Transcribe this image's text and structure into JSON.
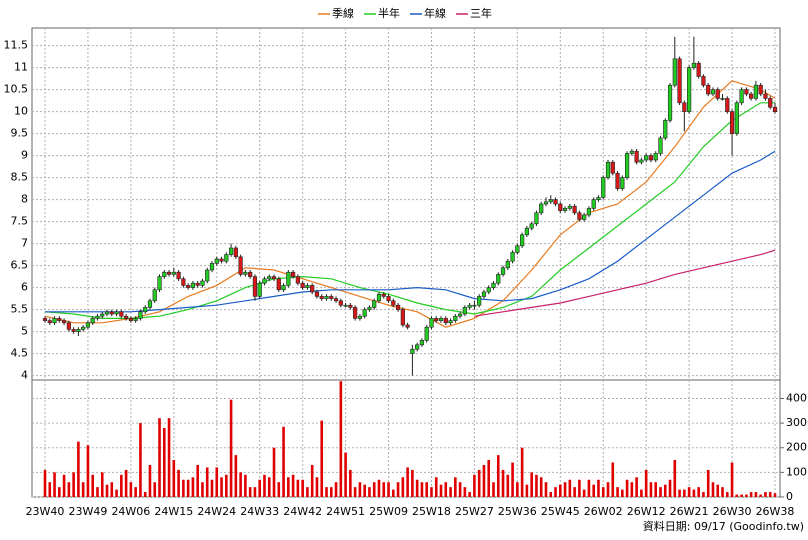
{
  "chart_data": {
    "type": "candlestick",
    "legend": "top",
    "categories": [
      "23W40",
      null,
      null,
      null,
      null,
      null,
      null,
      null,
      null,
      "23W49",
      null,
      null,
      null,
      null,
      null,
      null,
      null,
      null,
      "24W06",
      null,
      null,
      null,
      null,
      null,
      null,
      null,
      null,
      "24W15",
      null,
      null,
      null,
      null,
      null,
      null,
      null,
      null,
      "24W24",
      null,
      null,
      null,
      null,
      null,
      null,
      null,
      null,
      "24W33",
      null,
      null,
      null,
      null,
      null,
      null,
      null,
      null,
      "24W42",
      null,
      null,
      null,
      null,
      null,
      null,
      null,
      null,
      "24W51",
      null,
      null,
      null,
      null,
      null,
      null,
      null,
      null,
      "25W09",
      null,
      null,
      null,
      null,
      null,
      null,
      null,
      null,
      "25W18",
      null,
      null,
      null,
      null,
      null,
      null,
      null,
      null,
      "25W27",
      null,
      null,
      null,
      null,
      null,
      null,
      null,
      null,
      "25W36",
      null,
      null,
      null,
      null,
      null,
      null,
      null,
      null,
      "25W45",
      null,
      null,
      null,
      null,
      null,
      null,
      null,
      null,
      "26W02",
      null,
      null,
      null,
      null,
      null,
      null,
      null,
      null,
      "26W12",
      null,
      null,
      null,
      null,
      null,
      null,
      null,
      null,
      "26W21",
      null,
      null,
      null,
      null,
      null,
      null,
      null,
      null,
      "26W30",
      null,
      null,
      null,
      null,
      null,
      null,
      null,
      null,
      "26W38"
    ],
    "ohlc": [
      [
        5.3,
        5.35,
        5.2,
        5.25
      ],
      [
        5.25,
        5.3,
        5.15,
        5.2
      ],
      [
        5.2,
        5.35,
        5.15,
        5.3
      ],
      [
        5.3,
        5.35,
        5.2,
        5.25
      ],
      [
        5.25,
        5.3,
        5.15,
        5.2
      ],
      [
        5.2,
        5.25,
        5.0,
        5.05
      ],
      [
        5.05,
        5.1,
        4.95,
        5.0
      ],
      [
        5.0,
        5.1,
        4.9,
        5.05
      ],
      [
        5.05,
        5.15,
        5.0,
        5.1
      ],
      [
        5.1,
        5.25,
        5.05,
        5.2
      ],
      [
        5.2,
        5.35,
        5.15,
        5.3
      ],
      [
        5.3,
        5.4,
        5.25,
        5.35
      ],
      [
        5.35,
        5.45,
        5.3,
        5.4
      ],
      [
        5.4,
        5.5,
        5.35,
        5.45
      ],
      [
        5.45,
        5.5,
        5.35,
        5.4
      ],
      [
        5.4,
        5.5,
        5.35,
        5.45
      ],
      [
        5.45,
        5.5,
        5.3,
        5.35
      ],
      [
        5.35,
        5.4,
        5.25,
        5.3
      ],
      [
        5.3,
        5.35,
        5.2,
        5.25
      ],
      [
        5.25,
        5.35,
        5.2,
        5.3
      ],
      [
        5.3,
        5.5,
        5.25,
        5.45
      ],
      [
        5.45,
        5.6,
        5.4,
        5.55
      ],
      [
        5.55,
        5.75,
        5.5,
        5.7
      ],
      [
        5.7,
        6.0,
        5.65,
        5.95
      ],
      [
        5.95,
        6.3,
        5.9,
        6.25
      ],
      [
        6.25,
        6.4,
        6.2,
        6.35
      ],
      [
        6.35,
        6.4,
        6.25,
        6.3
      ],
      [
        6.3,
        6.45,
        6.25,
        6.35
      ],
      [
        6.35,
        6.4,
        6.15,
        6.2
      ],
      [
        6.2,
        6.25,
        6.0,
        6.05
      ],
      [
        6.05,
        6.1,
        5.95,
        6.0
      ],
      [
        6.0,
        6.15,
        5.95,
        6.1
      ],
      [
        6.1,
        6.15,
        6.0,
        6.05
      ],
      [
        6.05,
        6.2,
        6.0,
        6.15
      ],
      [
        6.15,
        6.45,
        6.1,
        6.4
      ],
      [
        6.4,
        6.6,
        6.35,
        6.55
      ],
      [
        6.55,
        6.7,
        6.5,
        6.65
      ],
      [
        6.65,
        6.7,
        6.55,
        6.6
      ],
      [
        6.6,
        6.8,
        6.55,
        6.75
      ],
      [
        6.75,
        7.0,
        6.7,
        6.9
      ],
      [
        6.9,
        6.95,
        6.65,
        6.7
      ],
      [
        6.7,
        6.75,
        6.25,
        6.3
      ],
      [
        6.3,
        6.4,
        6.25,
        6.35
      ],
      [
        6.35,
        6.4,
        6.2,
        6.25
      ],
      [
        6.25,
        6.3,
        5.7,
        5.8
      ],
      [
        5.8,
        6.15,
        5.75,
        6.1
      ],
      [
        6.1,
        6.25,
        6.05,
        6.2
      ],
      [
        6.2,
        6.3,
        6.15,
        6.25
      ],
      [
        6.25,
        6.3,
        6.15,
        6.2
      ],
      [
        6.2,
        6.25,
        5.9,
        5.95
      ],
      [
        5.95,
        6.1,
        5.9,
        6.05
      ],
      [
        6.05,
        6.4,
        6.0,
        6.35
      ],
      [
        6.35,
        6.4,
        6.2,
        6.25
      ],
      [
        6.25,
        6.3,
        6.05,
        6.1
      ],
      [
        6.1,
        6.15,
        5.95,
        6.0
      ],
      [
        6.0,
        6.1,
        5.95,
        6.05
      ],
      [
        6.05,
        6.1,
        5.85,
        5.9
      ],
      [
        5.9,
        5.95,
        5.75,
        5.8
      ],
      [
        5.8,
        5.85,
        5.7,
        5.75
      ],
      [
        5.75,
        5.85,
        5.7,
        5.8
      ],
      [
        5.8,
        5.85,
        5.7,
        5.75
      ],
      [
        5.75,
        5.8,
        5.65,
        5.7
      ],
      [
        5.7,
        5.75,
        5.55,
        5.6
      ],
      [
        5.6,
        5.65,
        5.55,
        5.6
      ],
      [
        5.6,
        5.65,
        5.5,
        5.55
      ],
      [
        5.55,
        5.6,
        5.25,
        5.3
      ],
      [
        5.3,
        5.4,
        5.25,
        5.35
      ],
      [
        5.35,
        5.55,
        5.3,
        5.5
      ],
      [
        5.5,
        5.6,
        5.45,
        5.55
      ],
      [
        5.55,
        5.75,
        5.5,
        5.7
      ],
      [
        5.7,
        5.9,
        5.65,
        5.85
      ],
      [
        5.85,
        5.9,
        5.75,
        5.8
      ],
      [
        5.8,
        5.85,
        5.65,
        5.7
      ],
      [
        5.7,
        5.75,
        5.55,
        5.6
      ],
      [
        5.6,
        5.65,
        5.45,
        5.5
      ],
      [
        5.5,
        5.55,
        5.1,
        5.15
      ],
      [
        5.15,
        5.2,
        5.05,
        5.1
      ],
      [
        4.5,
        4.7,
        4.0,
        4.6
      ],
      [
        4.6,
        4.75,
        4.55,
        4.7
      ],
      [
        4.7,
        4.85,
        4.65,
        4.8
      ],
      [
        4.8,
        5.15,
        4.75,
        5.1
      ],
      [
        5.1,
        5.35,
        5.05,
        5.3
      ],
      [
        5.3,
        5.35,
        5.2,
        5.25
      ],
      [
        5.25,
        5.35,
        5.2,
        5.3
      ],
      [
        5.3,
        5.35,
        5.15,
        5.2
      ],
      [
        5.2,
        5.3,
        5.15,
        5.25
      ],
      [
        5.25,
        5.4,
        5.2,
        5.35
      ],
      [
        5.35,
        5.45,
        5.3,
        5.4
      ],
      [
        5.4,
        5.6,
        5.35,
        5.55
      ],
      [
        5.55,
        5.65,
        5.5,
        5.6
      ],
      [
        5.6,
        5.7,
        5.5,
        5.6
      ],
      [
        5.6,
        5.85,
        5.55,
        5.8
      ],
      [
        5.8,
        5.95,
        5.75,
        5.9
      ],
      [
        5.9,
        6.05,
        5.85,
        6.0
      ],
      [
        6.0,
        6.15,
        5.95,
        6.1
      ],
      [
        6.1,
        6.35,
        6.05,
        6.3
      ],
      [
        6.3,
        6.5,
        6.25,
        6.45
      ],
      [
        6.45,
        6.65,
        6.4,
        6.6
      ],
      [
        6.6,
        6.85,
        6.55,
        6.8
      ],
      [
        6.8,
        7.0,
        6.75,
        6.95
      ],
      [
        6.95,
        7.25,
        6.9,
        7.2
      ],
      [
        7.2,
        7.4,
        7.15,
        7.35
      ],
      [
        7.35,
        7.5,
        7.3,
        7.45
      ],
      [
        7.45,
        7.75,
        7.4,
        7.7
      ],
      [
        7.7,
        7.95,
        7.65,
        7.9
      ],
      [
        7.9,
        8.05,
        7.85,
        7.95
      ],
      [
        7.95,
        8.1,
        7.9,
        8.0
      ],
      [
        8.0,
        8.05,
        7.85,
        7.9
      ],
      [
        7.9,
        7.95,
        7.7,
        7.75
      ],
      [
        7.75,
        7.85,
        7.7,
        7.8
      ],
      [
        7.8,
        7.9,
        7.75,
        7.85
      ],
      [
        7.85,
        7.9,
        7.65,
        7.7
      ],
      [
        7.7,
        7.75,
        7.5,
        7.55
      ],
      [
        7.55,
        7.7,
        7.5,
        7.65
      ],
      [
        7.65,
        7.85,
        7.6,
        7.8
      ],
      [
        7.8,
        8.05,
        7.75,
        8.0
      ],
      [
        8.0,
        8.1,
        7.95,
        8.05
      ],
      [
        8.05,
        8.55,
        8.0,
        8.5
      ],
      [
        8.5,
        8.9,
        8.45,
        8.85
      ],
      [
        8.85,
        8.9,
        8.55,
        8.6
      ],
      [
        8.6,
        8.65,
        8.2,
        8.25
      ],
      [
        8.25,
        8.55,
        8.2,
        8.5
      ],
      [
        8.5,
        9.1,
        8.45,
        9.05
      ],
      [
        9.05,
        9.15,
        9.0,
        9.1
      ],
      [
        9.1,
        9.15,
        8.8,
        8.85
      ],
      [
        8.85,
        8.95,
        8.8,
        8.9
      ],
      [
        8.9,
        9.05,
        8.85,
        9.0
      ],
      [
        9.0,
        9.05,
        8.85,
        8.9
      ],
      [
        8.9,
        9.1,
        8.85,
        9.05
      ],
      [
        9.05,
        9.45,
        9.0,
        9.4
      ],
      [
        9.4,
        9.85,
        9.35,
        9.8
      ],
      [
        9.8,
        10.65,
        9.75,
        10.6
      ],
      [
        10.6,
        11.7,
        10.55,
        11.2
      ],
      [
        11.2,
        11.25,
        10.15,
        10.2
      ],
      [
        10.2,
        10.25,
        9.55,
        10.0
      ],
      [
        10.0,
        11.05,
        9.95,
        11.0
      ],
      [
        11.0,
        11.7,
        10.95,
        11.1
      ],
      [
        11.1,
        11.15,
        10.75,
        10.8
      ],
      [
        10.8,
        10.85,
        10.55,
        10.6
      ],
      [
        10.6,
        10.65,
        10.35,
        10.4
      ],
      [
        10.4,
        10.55,
        10.35,
        10.5
      ],
      [
        10.5,
        10.55,
        10.25,
        10.3
      ],
      [
        10.3,
        10.4,
        10.25,
        10.3
      ],
      [
        10.3,
        10.35,
        9.95,
        10.0
      ],
      [
        10.0,
        10.05,
        9.0,
        9.5
      ],
      [
        9.5,
        10.25,
        9.45,
        10.2
      ],
      [
        10.2,
        10.55,
        10.15,
        10.5
      ],
      [
        10.5,
        10.55,
        10.35,
        10.4
      ],
      [
        10.4,
        10.45,
        10.25,
        10.3
      ],
      [
        10.3,
        10.7,
        10.25,
        10.6
      ],
      [
        10.6,
        10.65,
        10.35,
        10.4
      ],
      [
        10.4,
        10.5,
        10.25,
        10.3
      ],
      [
        10.3,
        10.35,
        10.05,
        10.1
      ],
      [
        10.1,
        10.2,
        9.95,
        10.0
      ]
    ],
    "up_color": "#22cc22",
    "down_color": "#d81818",
    "ylim": [
      3.9,
      11.9
    ],
    "yticks": [
      4,
      4.5,
      5,
      5.5,
      6,
      6.5,
      7,
      7.5,
      8,
      8.5,
      9,
      9.5,
      10,
      10.5,
      11,
      11.5
    ],
    "grid": true,
    "series": [
      {
        "name": "季線",
        "color": "#e87a1e",
        "x": [
          0,
          6,
          12,
          18,
          24,
          30,
          36,
          42,
          48,
          54,
          60,
          66,
          72,
          78,
          84,
          90,
          96,
          102,
          108,
          114,
          120,
          126,
          132,
          138,
          144,
          150,
          153
        ],
        "values": [
          5.35,
          5.2,
          5.2,
          5.3,
          5.45,
          5.8,
          6.05,
          6.45,
          6.4,
          6.2,
          6.0,
          5.8,
          5.6,
          5.45,
          5.1,
          5.3,
          5.7,
          6.4,
          7.2,
          7.7,
          7.9,
          8.4,
          9.2,
          10.1,
          10.7,
          10.5,
          10.3
        ]
      },
      {
        "name": "半年",
        "color": "#22cc22",
        "x": [
          0,
          6,
          12,
          18,
          24,
          30,
          36,
          42,
          48,
          54,
          60,
          66,
          72,
          78,
          84,
          90,
          96,
          102,
          108,
          114,
          120,
          126,
          132,
          138,
          144,
          150,
          153
        ],
        "values": [
          5.45,
          5.4,
          5.3,
          5.3,
          5.35,
          5.5,
          5.7,
          6.0,
          6.2,
          6.25,
          6.2,
          6.0,
          5.85,
          5.65,
          5.5,
          5.4,
          5.55,
          5.8,
          6.4,
          6.9,
          7.4,
          7.9,
          8.4,
          9.2,
          9.8,
          10.2,
          10.2
        ]
      },
      {
        "name": "年線",
        "color": "#1a5cc8",
        "x": [
          0,
          6,
          12,
          18,
          24,
          30,
          36,
          42,
          48,
          54,
          60,
          66,
          72,
          78,
          84,
          90,
          96,
          102,
          108,
          114,
          120,
          126,
          132,
          138,
          144,
          150,
          153
        ],
        "values": [
          5.45,
          5.45,
          5.45,
          5.45,
          5.5,
          5.55,
          5.6,
          5.7,
          5.8,
          5.9,
          5.95,
          5.95,
          5.95,
          6.0,
          5.95,
          5.75,
          5.7,
          5.75,
          5.95,
          6.2,
          6.6,
          7.1,
          7.6,
          8.1,
          8.6,
          8.9,
          9.1
        ]
      },
      {
        "name": "三年",
        "color": "#c8206a",
        "x": [
          90,
          96,
          102,
          108,
          114,
          120,
          126,
          132,
          138,
          144,
          150,
          153
        ],
        "values": [
          5.35,
          5.45,
          5.55,
          5.65,
          5.8,
          5.95,
          6.1,
          6.3,
          6.45,
          6.6,
          6.75,
          6.85
        ]
      }
    ],
    "volume": {
      "color": "#e00000",
      "ylim": [
        0,
        475
      ],
      "yticks": [
        0,
        100,
        200,
        300,
        400
      ],
      "values": [
        110,
        60,
        100,
        40,
        90,
        60,
        100,
        225,
        60,
        210,
        90,
        40,
        100,
        50,
        60,
        30,
        90,
        110,
        60,
        40,
        300,
        20,
        130,
        60,
        320,
        280,
        320,
        150,
        110,
        70,
        70,
        80,
        130,
        60,
        120,
        70,
        120,
        80,
        90,
        395,
        170,
        100,
        90,
        40,
        40,
        70,
        90,
        80,
        200,
        60,
        285,
        80,
        90,
        70,
        70,
        40,
        130,
        80,
        310,
        40,
        40,
        60,
        470,
        180,
        110,
        40,
        60,
        50,
        40,
        60,
        70,
        60,
        60,
        30,
        60,
        80,
        120,
        110,
        70,
        60,
        60,
        40,
        80,
        50,
        60,
        40,
        80,
        60,
        40,
        20,
        90,
        110,
        130,
        150,
        60,
        170,
        110,
        90,
        140,
        60,
        200,
        50,
        100,
        90,
        80,
        60,
        20,
        40,
        50,
        60,
        70,
        40,
        70,
        30,
        70,
        50,
        70,
        40,
        60,
        140,
        40,
        30,
        70,
        60,
        80,
        30,
        110,
        60,
        60,
        40,
        50,
        70,
        150,
        30,
        30,
        40,
        30,
        40,
        20,
        110,
        60,
        50,
        40,
        20,
        140,
        10,
        10,
        10,
        20,
        20,
        10,
        20,
        20,
        15
      ]
    },
    "note": "資料日期: 09/17  (Goodinfo.tw)"
  }
}
